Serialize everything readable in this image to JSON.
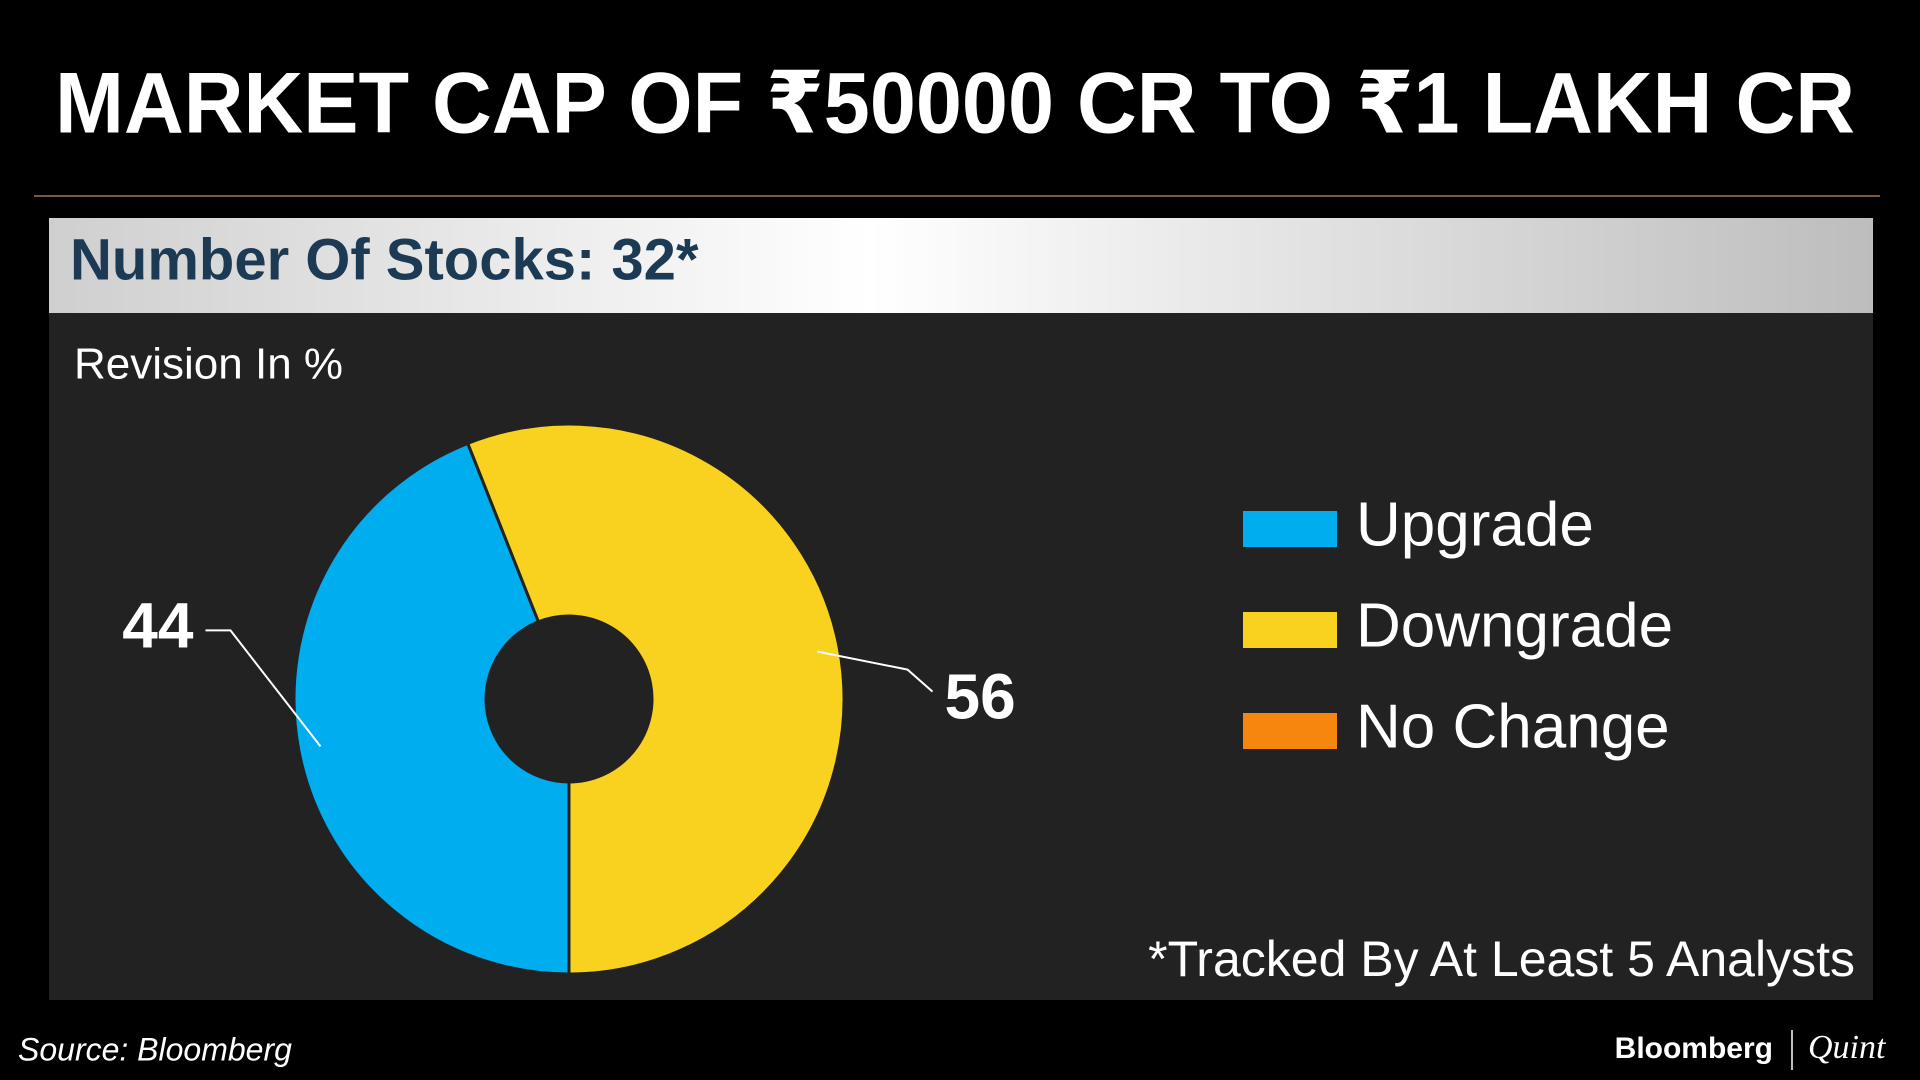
{
  "chart_data": {
    "type": "pie",
    "title": "MARKET CAP OF ₹50000 CR TO ₹1 LAKH CR",
    "subtitle": "Number Of Stocks: 32*",
    "unit_label": "Revision In %",
    "categories": [
      "Upgrade",
      "Downgrade",
      "No Change"
    ],
    "values": [
      44,
      56,
      0
    ],
    "colors": [
      "#00adef",
      "#f9d220",
      "#f7860e"
    ],
    "footnote": "*Tracked By At Least 5 Analysts"
  },
  "source": "Source: Bloomberg",
  "brand": [
    "Bloomberg",
    "Quint"
  ]
}
